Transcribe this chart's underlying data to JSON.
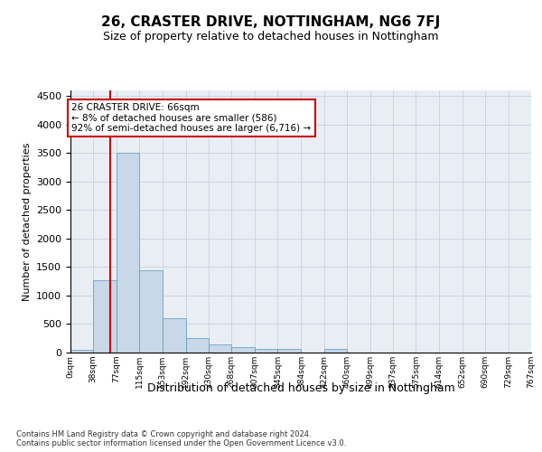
{
  "title": "26, CRASTER DRIVE, NOTTINGHAM, NG6 7FJ",
  "subtitle": "Size of property relative to detached houses in Nottingham",
  "xlabel": "Distribution of detached houses by size in Nottingham",
  "ylabel": "Number of detached properties",
  "bar_values": [
    50,
    1270,
    3500,
    1450,
    600,
    250,
    140,
    90,
    60,
    60,
    0,
    60,
    0,
    0,
    0,
    0,
    0,
    0,
    0,
    0
  ],
  "bin_edges": [
    0,
    38,
    77,
    115,
    153,
    192,
    230,
    268,
    307,
    345,
    384,
    422,
    460,
    499,
    537,
    575,
    614,
    652,
    690,
    729,
    767
  ],
  "bin_labels": [
    "0sqm",
    "38sqm",
    "77sqm",
    "115sqm",
    "153sqm",
    "192sqm",
    "230sqm",
    "268sqm",
    "307sqm",
    "345sqm",
    "384sqm",
    "422sqm",
    "460sqm",
    "499sqm",
    "537sqm",
    "575sqm",
    "614sqm",
    "652sqm",
    "690sqm",
    "729sqm",
    "767sqm"
  ],
  "bar_color": "#c8d8e8",
  "bar_edge_color": "#5599bb",
  "grid_color": "#c0ccd8",
  "bg_color": "#e8eef4",
  "property_line_x": 66,
  "property_line_color": "#cc0000",
  "ylim": [
    0,
    4600
  ],
  "yticks": [
    0,
    500,
    1000,
    1500,
    2000,
    2500,
    3000,
    3500,
    4000,
    4500
  ],
  "annotation_text": "26 CRASTER DRIVE: 66sqm\n← 8% of detached houses are smaller (586)\n92% of semi-detached houses are larger (6,716) →",
  "annotation_box_facecolor": "#ffffff",
  "annotation_box_edgecolor": "#cc0000",
  "footer_line1": "Contains HM Land Registry data © Crown copyright and database right 2024.",
  "footer_line2": "Contains public sector information licensed under the Open Government Licence v3.0."
}
